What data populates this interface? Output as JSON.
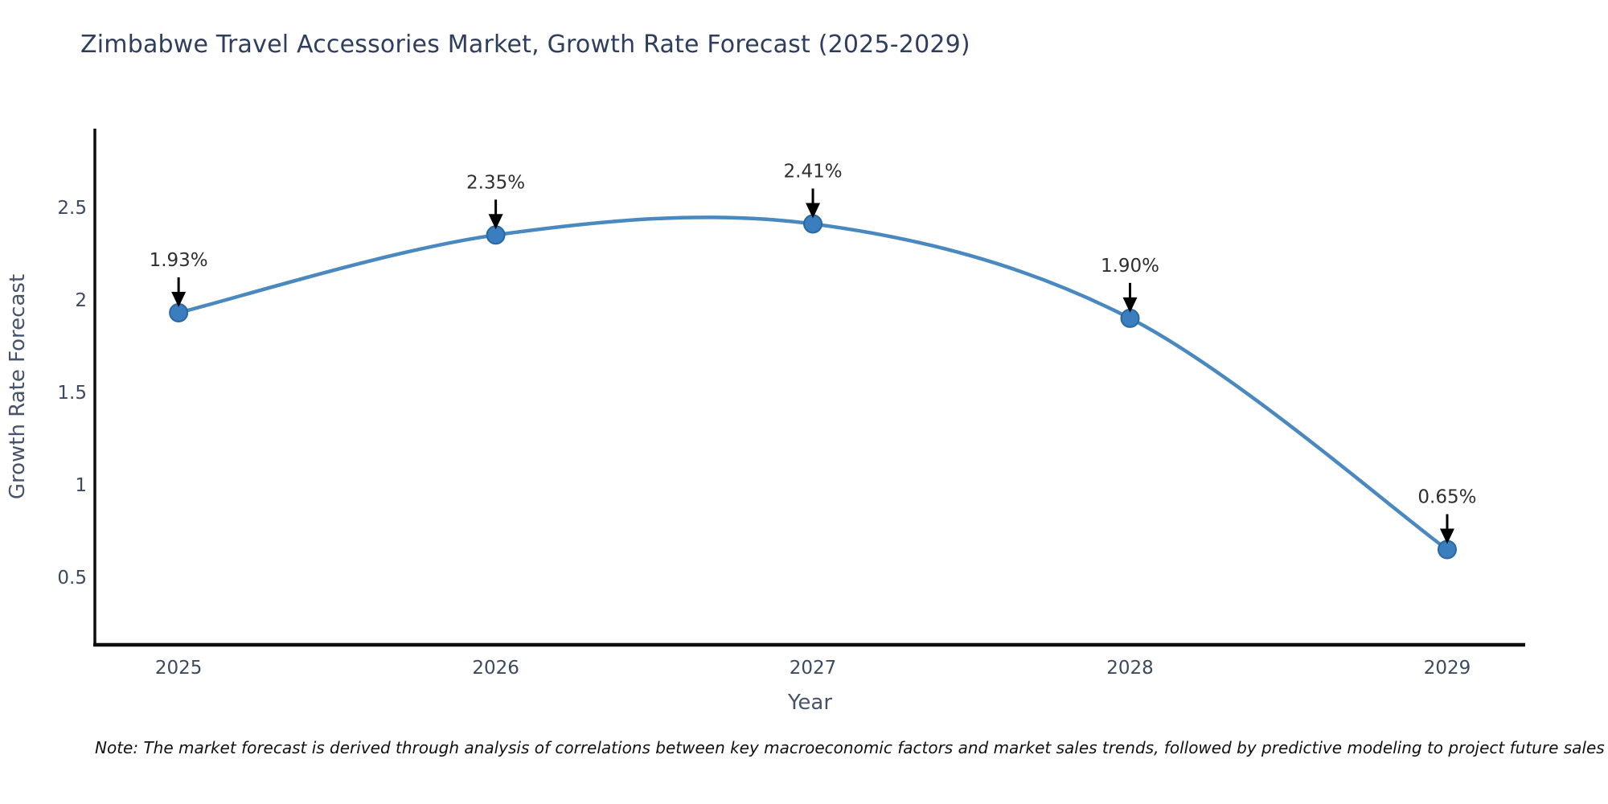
{
  "title": "Zimbabwe Travel Accessories Market, Growth Rate Forecast (2025-2029)",
  "note": "Note: The market forecast is derived through analysis of correlations between key macroeconomic factors and market sales trends, followed by predictive modeling to project future sales",
  "chart_data": {
    "type": "line",
    "title": "Zimbabwe Travel Accessories Market, Growth Rate Forecast (2025-2029)",
    "x": [
      2025,
      2026,
      2027,
      2028,
      2029
    ],
    "values": [
      1.93,
      2.35,
      2.41,
      1.9,
      0.65
    ],
    "point_labels": [
      "1.93%",
      "2.35%",
      "2.41%",
      "1.90%",
      "0.65%"
    ],
    "xlabel": "Year",
    "ylabel": "Growth Rate Forecast",
    "yticks": [
      0.5,
      1,
      1.5,
      2,
      2.5
    ],
    "xticks": [
      2025,
      2026,
      2027,
      2028,
      2029
    ],
    "ylim": [
      0.135,
      2.925
    ],
    "xlim": [
      2024.736,
      2029.246
    ],
    "curve": "spline",
    "grid": false,
    "legend_position": "none",
    "colors": {
      "line": "#4a89c0",
      "marker_fill": "#3a7ebf",
      "marker_edge": "#2a699f",
      "axis_line": "#0d0d0d",
      "tick_label": "#3c4a60",
      "axis_title": "#46536b",
      "annotation_text": "#2f2f2f",
      "annotation_arrow": "#000000"
    }
  }
}
